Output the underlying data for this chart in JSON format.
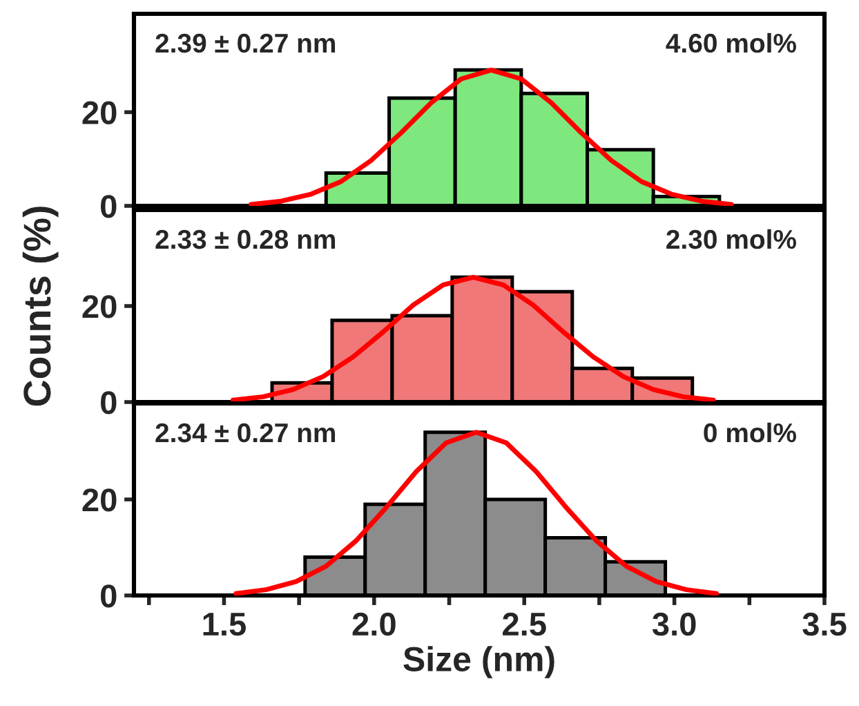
{
  "chart_data": [
    {
      "type": "histogram",
      "annotations": [
        "2.39 ± 0.27 nm",
        "4.60 mol%"
      ],
      "xlim": [
        1.2,
        3.5
      ],
      "ylim": [
        0,
        41
      ],
      "yticks": [
        0,
        20
      ],
      "tick_labels": "y",
      "xticks": [
        {
          "value": 1.25,
          "label": null
        },
        {
          "value": 1.5,
          "label": null
        },
        {
          "value": 1.75,
          "label": null
        },
        {
          "value": 2.0,
          "label": null
        },
        {
          "value": 2.25,
          "label": null
        },
        {
          "value": 2.5,
          "label": null
        },
        {
          "value": 2.75,
          "label": null
        },
        {
          "value": 3.0,
          "label": null
        },
        {
          "value": 3.25,
          "label": null
        },
        {
          "value": 3.5,
          "label": null
        }
      ],
      "series": [
        {
          "color": "#7ee87e",
          "bins": [
            1.84,
            2.05,
            2.27,
            2.49,
            2.71,
            2.93,
            3.15
          ],
          "values": [
            7,
            23,
            29,
            24,
            12,
            2
          ]
        },
        {
          "type": "line",
          "color": "#ff0000",
          "x": [
            1.59,
            1.69,
            1.79,
            1.89,
            1.99,
            2.09,
            2.19,
            2.29,
            2.39,
            2.49,
            2.59,
            2.69,
            2.79,
            2.89,
            2.99,
            3.09,
            3.19
          ],
          "values": [
            0.3,
            1.0,
            2.5,
            5.2,
            9.7,
            15.6,
            22,
            27.1,
            29,
            27.1,
            22,
            15.6,
            9.7,
            5.2,
            2.5,
            1.0,
            0.3
          ]
        }
      ]
    },
    {
      "type": "histogram",
      "annotations": [
        "2.33 ± 0.28 nm",
        "2.30 mol%"
      ],
      "xlim": [
        1.2,
        3.5
      ],
      "ylim": [
        0,
        40
      ],
      "yticks": [
        0,
        20
      ],
      "tick_labels": "y",
      "ylabel": "Counts (%)",
      "xticks": [
        {
          "value": 1.25,
          "label": null
        },
        {
          "value": 1.5,
          "label": null
        },
        {
          "value": 1.75,
          "label": null
        },
        {
          "value": 2.0,
          "label": null
        },
        {
          "value": 2.25,
          "label": null
        },
        {
          "value": 2.5,
          "label": null
        },
        {
          "value": 2.75,
          "label": null
        },
        {
          "value": 3.0,
          "label": null
        },
        {
          "value": 3.25,
          "label": null
        },
        {
          "value": 3.5,
          "label": null
        }
      ],
      "series": [
        {
          "color": "#f07878",
          "bins": [
            1.66,
            1.86,
            2.06,
            2.26,
            2.46,
            2.66,
            2.86,
            3.06
          ],
          "values": [
            4,
            17,
            18,
            26,
            23,
            7,
            5
          ]
        },
        {
          "type": "line",
          "color": "#ff0000",
          "x": [
            1.53,
            1.63,
            1.73,
            1.83,
            1.93,
            2.03,
            2.13,
            2.23,
            2.33,
            2.43,
            2.53,
            2.63,
            2.73,
            2.83,
            2.93,
            3.03,
            3.13
          ],
          "values": [
            0.4,
            1.1,
            2.6,
            5.3,
            9.4,
            14.6,
            20.2,
            24.4,
            26,
            24.4,
            20.2,
            14.6,
            9.4,
            5.3,
            2.6,
            1.1,
            0.4
          ]
        }
      ]
    },
    {
      "type": "histogram",
      "annotations": [
        "2.34 ± 0.27 nm",
        "0 mol%"
      ],
      "xlim": [
        1.2,
        3.5
      ],
      "ylim": [
        0,
        40
      ],
      "yticks": [
        0,
        20
      ],
      "xlabel": "Size (nm)",
      "xticks": [
        {
          "value": 1.25,
          "label": null
        },
        1.5,
        {
          "value": 1.75,
          "label": null
        },
        {
          "value": 2.0,
          "label": "2.0"
        },
        {
          "value": 2.25,
          "label": null
        },
        2.5,
        {
          "value": 2.75,
          "label": null
        },
        {
          "value": 3.0,
          "label": "3.0"
        },
        {
          "value": 3.25,
          "label": null
        },
        3.5
      ],
      "series": [
        {
          "color": "#8c8c8c",
          "bins": [
            1.77,
            1.97,
            2.17,
            2.37,
            2.57,
            2.77,
            2.97
          ],
          "values": [
            8,
            19,
            34,
            20,
            12,
            7
          ]
        },
        {
          "type": "line",
          "color": "#ff0000",
          "x": [
            1.54,
            1.64,
            1.74,
            1.84,
            1.94,
            2.04,
            2.14,
            2.24,
            2.34,
            2.44,
            2.54,
            2.64,
            2.74,
            2.84,
            2.94,
            3.04,
            3.14
          ],
          "values": [
            0.4,
            1.2,
            2.9,
            6.1,
            11.4,
            18.3,
            25.8,
            31.8,
            34,
            31.8,
            25.8,
            18.3,
            11.4,
            6.1,
            2.9,
            1.2,
            0.4
          ]
        }
      ]
    }
  ]
}
